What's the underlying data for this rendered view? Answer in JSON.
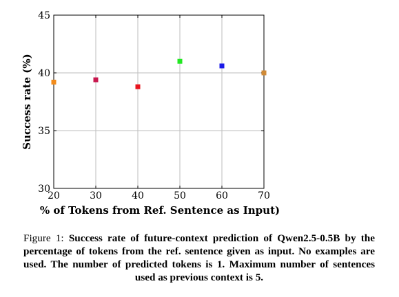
{
  "chart_data": {
    "type": "scatter",
    "xlabel": "% of Tokens from Ref. Sentence as Input)",
    "ylabel": "Success rate (%)",
    "xlim": [
      20,
      70
    ],
    "ylim": [
      30,
      45
    ],
    "xticks": [
      20,
      30,
      40,
      50,
      60,
      70
    ],
    "yticks": [
      30,
      35,
      40,
      45
    ],
    "grid": true,
    "legend": "none",
    "points": [
      {
        "x": 20,
        "y": 39.2,
        "color": "#f28c1c"
      },
      {
        "x": 30,
        "y": 39.4,
        "color": "#c8174e"
      },
      {
        "x": 40,
        "y": 38.8,
        "color": "#e8141e"
      },
      {
        "x": 50,
        "y": 41.0,
        "color": "#22e822"
      },
      {
        "x": 60,
        "y": 40.6,
        "color": "#1a1ae8"
      },
      {
        "x": 70,
        "y": 40.0,
        "color": "#d08a36"
      }
    ]
  },
  "caption": {
    "label": "Figure 1:",
    "text": "Success rate of future-context prediction of Qwen2.5-0.5B by the percentage of tokens from the ref. sentence given as input. No examples are used. The number of predicted tokens is 1. Maximum number of sentences used as previous context is 5."
  }
}
